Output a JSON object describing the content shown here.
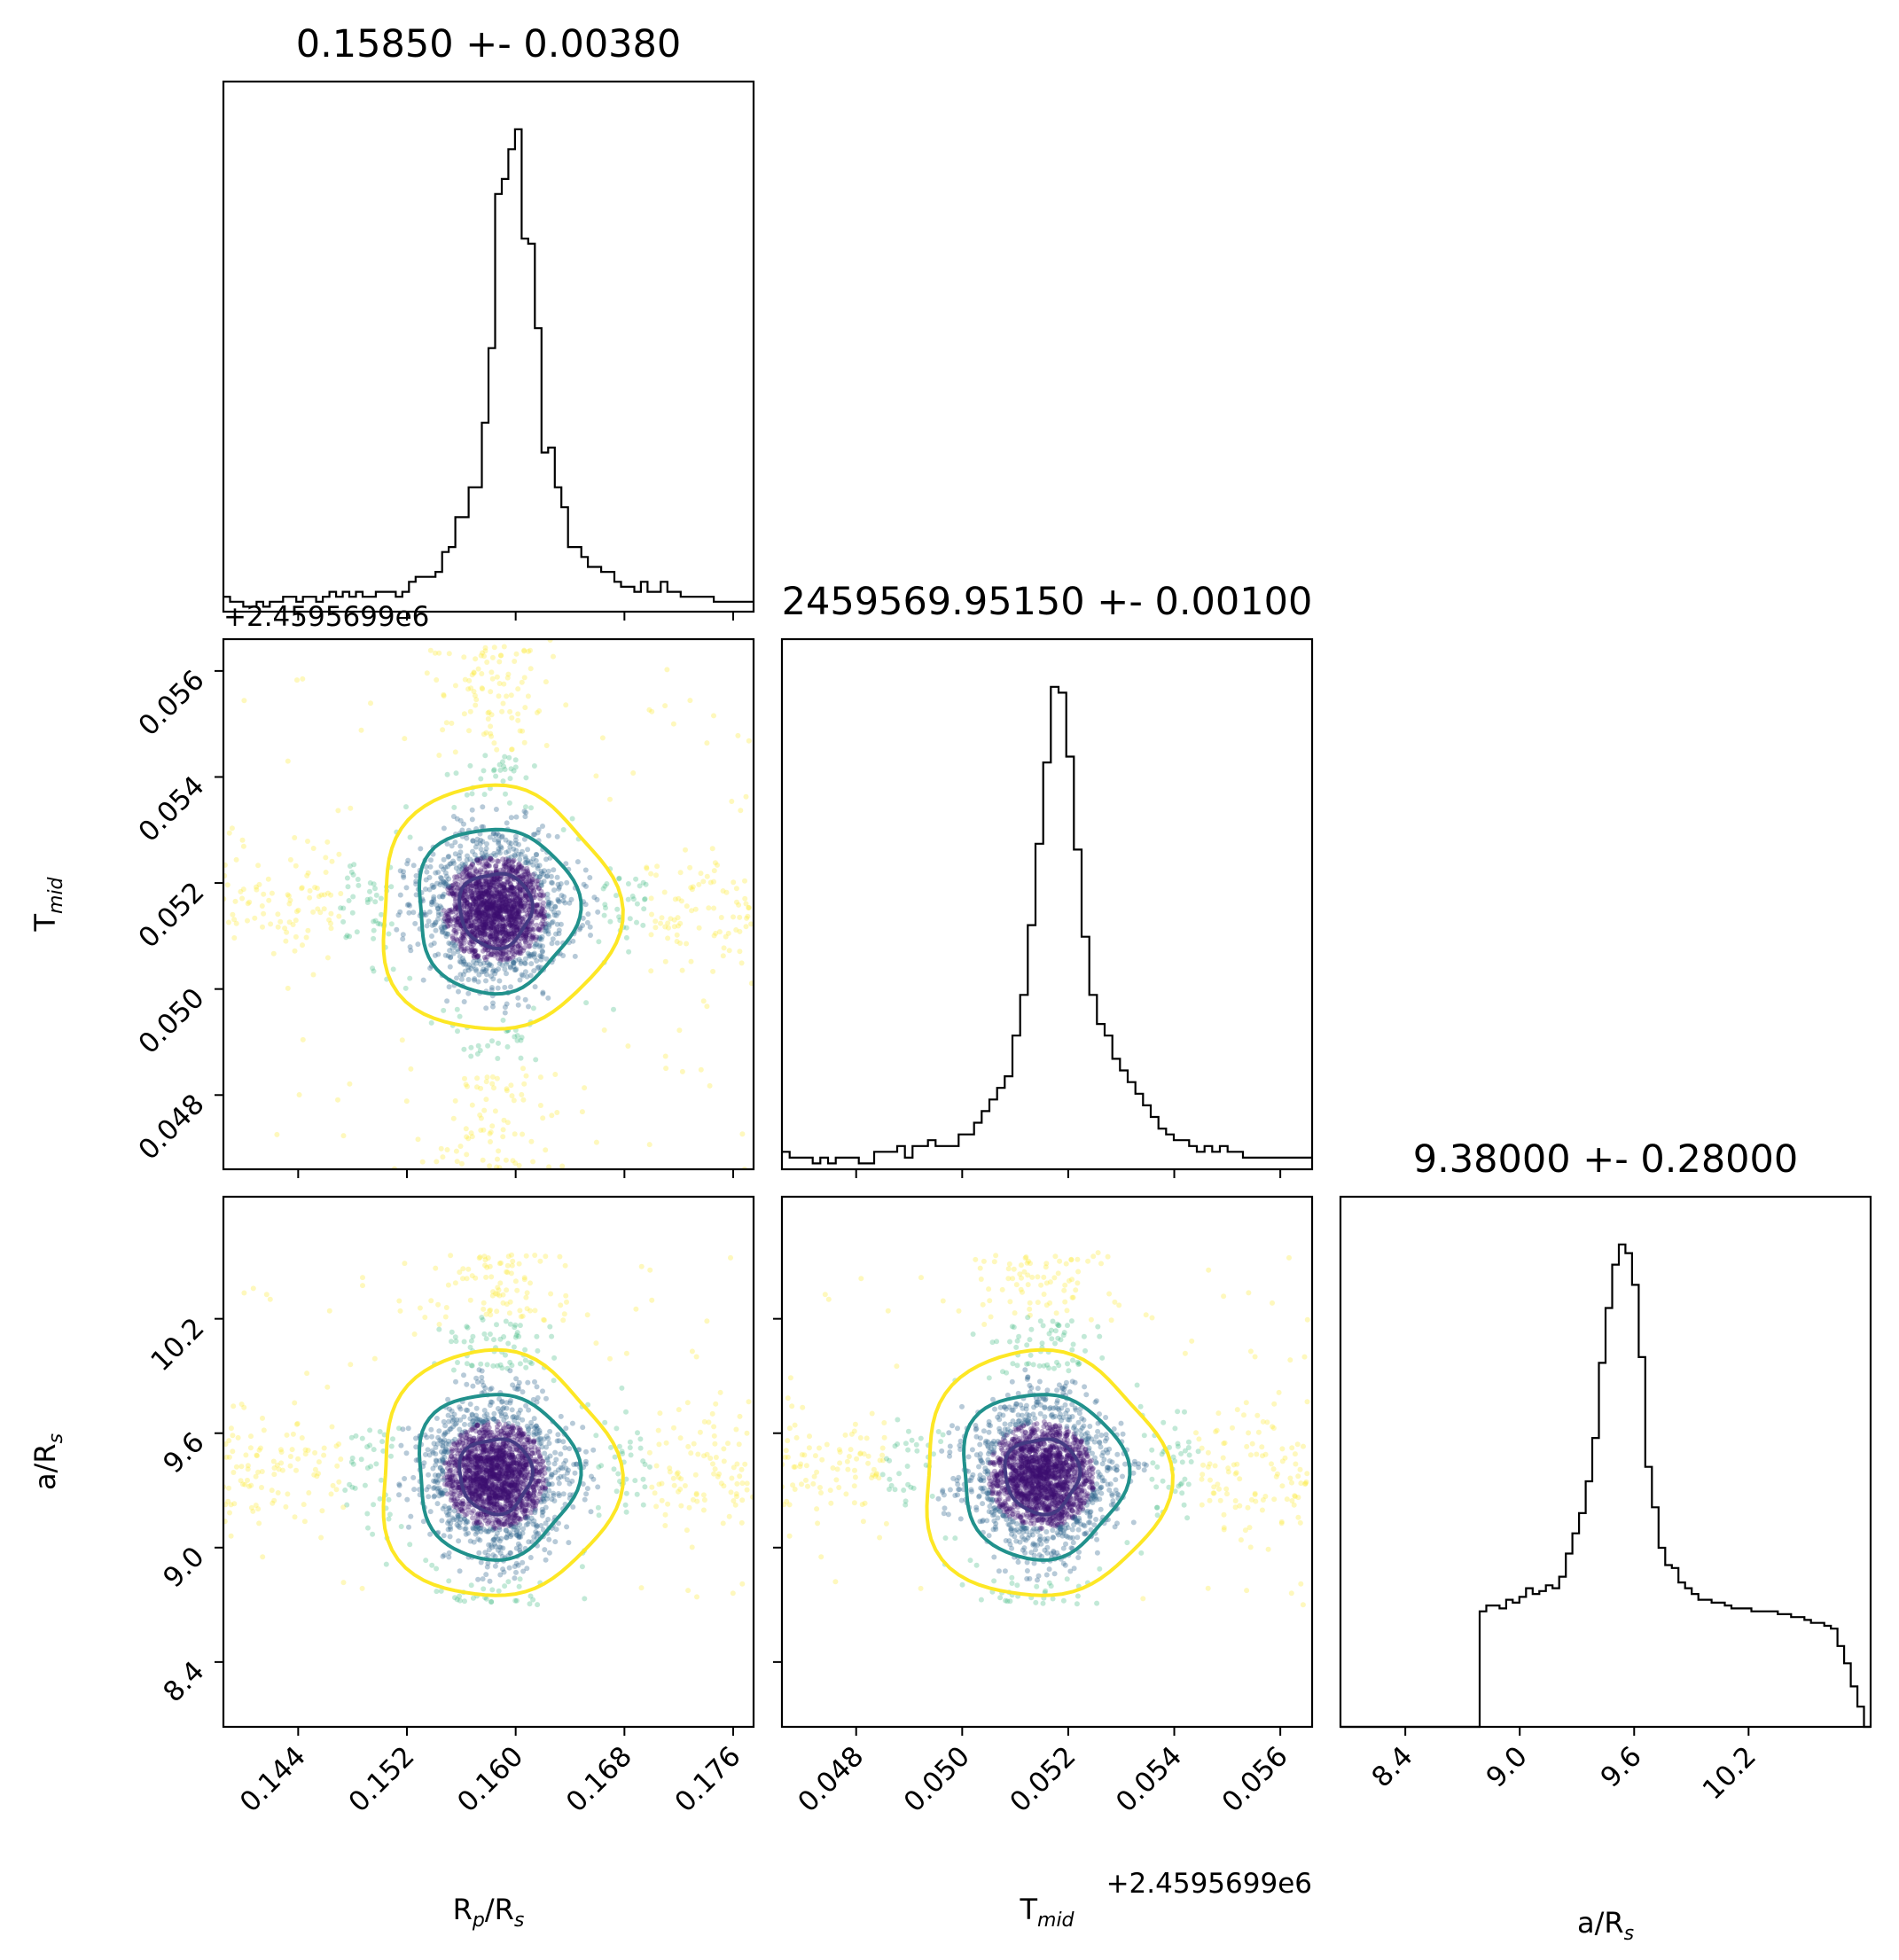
{
  "chart_data": {
    "type": "scatter",
    "subtype": "corner-plot",
    "parameters": [
      {
        "label": "R_p/R_s",
        "title": "0.15850 +- 0.00380",
        "range": [
          0.1385,
          0.1775
        ],
        "ticks": [
          "0.144",
          "0.152",
          "0.160",
          "0.168",
          "0.176"
        ],
        "mean": 0.1585,
        "std": 0.0038
      },
      {
        "label": "T_mid",
        "title": "2459569.95150 +- 0.00100",
        "offset_label": "+2.4595699e6",
        "range": [
          0.0466,
          0.0566
        ],
        "ticks": [
          "0.048",
          "0.050",
          "0.052",
          "0.054",
          "0.056"
        ],
        "mean": 0.0515,
        "std": 0.001
      },
      {
        "label": "a/R_s",
        "title": "9.38000 +- 0.28000",
        "range": [
          8.06,
          10.84
        ],
        "ticks": [
          "8.4",
          "9.0",
          "9.6",
          "10.2"
        ],
        "mean": 9.38,
        "std": 0.28
      }
    ],
    "axis_labels": {
      "rp": {
        "main": "R",
        "sub1": "p",
        "mid": "/R",
        "sub2": "s"
      },
      "tmid": {
        "main": "T",
        "sub": "mid"
      },
      "ars": {
        "main": "a/R",
        "sub": "s"
      }
    },
    "contour_levels": [
      "1 sigma",
      "2 sigma",
      "3 sigma"
    ],
    "contour_colors": [
      "#443a83",
      "#21918c",
      "#fde725"
    ],
    "histograms": [
      {
        "parameter": "R_p/R_s",
        "bins_range": [
          0.1385,
          0.1775
        ],
        "counts": [
          3,
          2,
          2,
          1,
          1,
          2,
          1,
          2,
          2,
          3,
          3,
          2,
          3,
          3,
          2,
          3,
          4,
          3,
          4,
          3,
          4,
          3,
          3,
          4,
          4,
          4,
          3,
          4,
          6,
          7,
          7,
          7,
          8,
          12,
          13,
          19,
          19,
          25,
          25,
          38,
          53,
          84,
          87,
          93,
          97,
          75,
          74,
          57,
          32,
          33,
          25,
          21,
          13,
          13,
          11,
          9,
          9,
          8,
          8,
          6,
          5,
          5,
          4,
          6,
          4,
          4,
          6,
          4,
          4,
          3,
          3,
          3,
          3,
          3,
          2,
          2,
          2,
          2,
          2,
          2
        ]
      },
      {
        "parameter": "T_mid",
        "bins_range": [
          0.0466,
          0.0566
        ],
        "counts": [
          3,
          2,
          2,
          2,
          1,
          2,
          1,
          2,
          2,
          2,
          1,
          1,
          3,
          3,
          3,
          4,
          2,
          4,
          4,
          5,
          4,
          4,
          4,
          6,
          6,
          8,
          10,
          12,
          14,
          16,
          23,
          30,
          42,
          56,
          70,
          83,
          82,
          71,
          55,
          40,
          30,
          25,
          23,
          19,
          17,
          15,
          13,
          11,
          9,
          7,
          6,
          5,
          5,
          4,
          3,
          4,
          3,
          4,
          3,
          3,
          2,
          2,
          2,
          2,
          2,
          2,
          2,
          2,
          2
        ]
      },
      {
        "parameter": "a/R_s",
        "bins_range": [
          8.06,
          10.84
        ],
        "counts": [
          0,
          0,
          0,
          0,
          0,
          0,
          0,
          0,
          0,
          0,
          0,
          0,
          0,
          0,
          0,
          0,
          0,
          0,
          0,
          0,
          0,
          40,
          42,
          42,
          41,
          44,
          43,
          45,
          48,
          46,
          47,
          49,
          48,
          52,
          60,
          67,
          74,
          85,
          100,
          126,
          145,
          160,
          167,
          164,
          153,
          128,
          90,
          76,
          62,
          56,
          55,
          50,
          48,
          46,
          44,
          44,
          43,
          43,
          42,
          41,
          41,
          41,
          40,
          40,
          40,
          40,
          39,
          39,
          38,
          38,
          37,
          36,
          36,
          35,
          34,
          28,
          22,
          14,
          7,
          0
        ]
      }
    ]
  }
}
